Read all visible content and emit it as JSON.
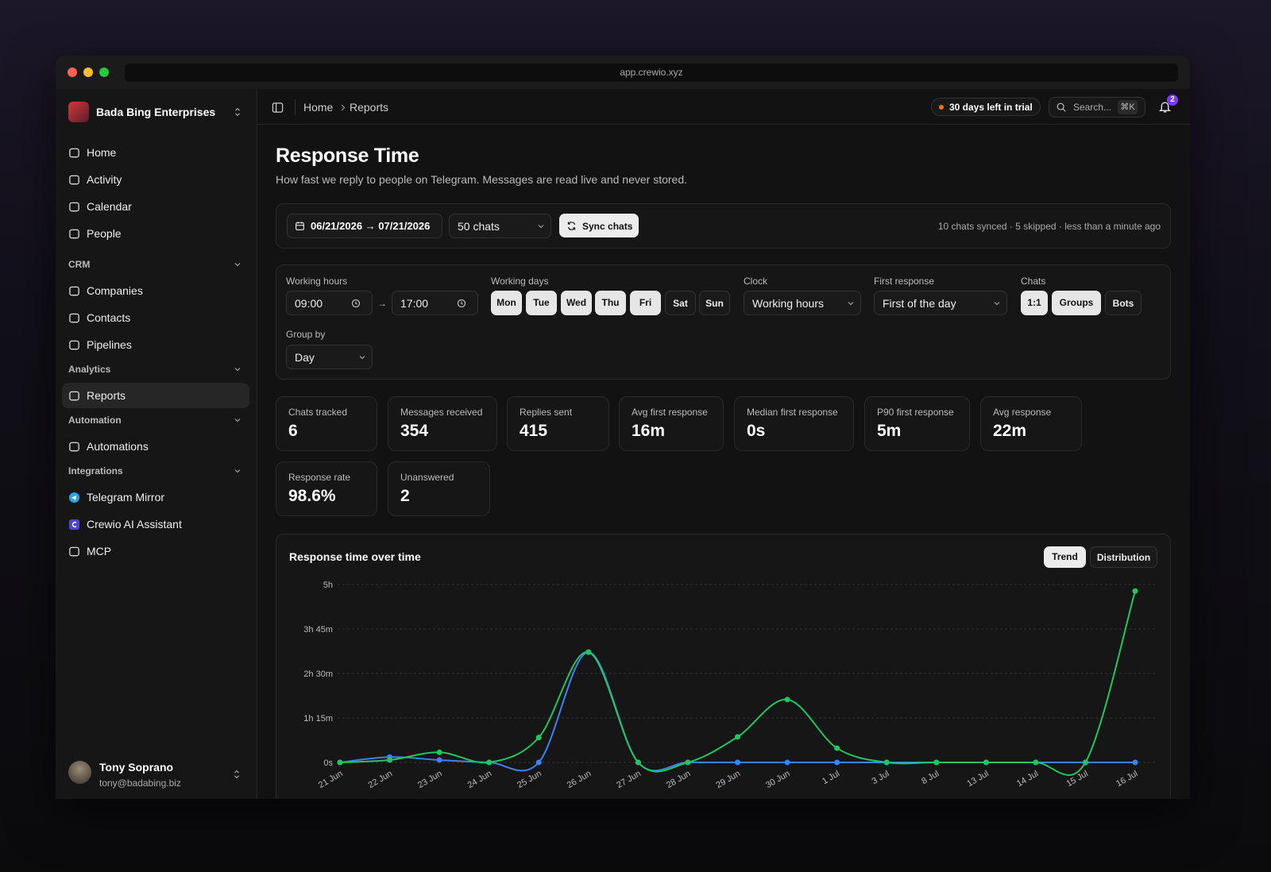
{
  "browser": {
    "url": "app.crewio.xyz"
  },
  "sidebar": {
    "workspace": "Bada Bing Enterprises",
    "groups": [
      {
        "items": [
          "Home",
          "Activity",
          "Calendar",
          "People"
        ]
      },
      {
        "title": "CRM",
        "items": [
          "Companies",
          "Contacts",
          "Pipelines"
        ]
      },
      {
        "title": "Analytics",
        "items": [
          "Reports"
        ]
      },
      {
        "title": "Automation",
        "items": [
          "Automations"
        ]
      },
      {
        "title": "Integrations",
        "items": [
          "Telegram Mirror",
          "Crewio AI Assistant",
          "MCP"
        ]
      }
    ],
    "active": "Reports",
    "user": {
      "name": "Tony Soprano",
      "email": "tony@badabing.biz"
    }
  },
  "topbar": {
    "breadcrumb": [
      "Home",
      "Reports"
    ],
    "trial": "30 days left in trial",
    "search_placeholder": "Search...",
    "search_shortcut": "⌘K",
    "notifications": 2
  },
  "header": {
    "title": "Response Time",
    "subtitle": "How fast we reply to people on Telegram. Messages are read live and never stored."
  },
  "toolbar": {
    "date_range": "06/21/2026 → 07/21/2026",
    "chats": "50 chats",
    "sync": "Sync chats",
    "status": "10 chats synced · 5 skipped · less than a minute ago"
  },
  "filters": {
    "working_hours": {
      "label": "Working hours",
      "start": "09:00",
      "separator": "→",
      "end": "17:00"
    },
    "working_days": {
      "label": "Working days",
      "days": [
        {
          "label": "Mon",
          "on": true
        },
        {
          "label": "Tue",
          "on": true
        },
        {
          "label": "Wed",
          "on": true
        },
        {
          "label": "Thu",
          "on": true
        },
        {
          "label": "Fri",
          "on": true
        },
        {
          "label": "Sat",
          "on": false
        },
        {
          "label": "Sun",
          "on": false
        }
      ]
    },
    "clock": {
      "label": "Clock",
      "value": "Working hours"
    },
    "first_response": {
      "label": "First response",
      "value": "First of the day"
    },
    "chats": {
      "label": "Chats",
      "options": [
        {
          "label": "1:1",
          "on": true
        },
        {
          "label": "Groups",
          "on": true
        },
        {
          "label": "Bots",
          "on": false
        }
      ]
    },
    "group_by": {
      "label": "Group by",
      "value": "Day"
    }
  },
  "stats": [
    {
      "label": "Chats tracked",
      "value": "6"
    },
    {
      "label": "Messages received",
      "value": "354"
    },
    {
      "label": "Replies sent",
      "value": "415"
    },
    {
      "label": "Avg first response",
      "value": "16m"
    },
    {
      "label": "Median first response",
      "value": "0s"
    },
    {
      "label": "P90 first response",
      "value": "5m"
    },
    {
      "label": "Avg response",
      "value": "22m"
    },
    {
      "label": "Response rate",
      "value": "98.6%"
    },
    {
      "label": "Unanswered",
      "value": "2"
    }
  ],
  "chart_controls": {
    "options": [
      "Trend",
      "Distribution"
    ],
    "active": "Trend"
  },
  "chart_data": {
    "type": "line",
    "title": "Response time over time",
    "categories": [
      "21 Jun",
      "22 Jun",
      "23 Jun",
      "24 Jun",
      "25 Jun",
      "26 Jun",
      "27 Jun",
      "28 Jun",
      "29 Jun",
      "30 Jun",
      "1 Jul",
      "3 Jul",
      "8 Jul",
      "13 Jul",
      "14 Jul",
      "15 Jul",
      "16 Jul"
    ],
    "series": [
      {
        "color": "#3b82f6",
        "values": [
          0,
          9,
          4,
          0,
          0,
          186,
          0,
          0,
          0,
          0,
          0,
          0,
          0,
          0,
          0,
          0,
          0
        ]
      },
      {
        "color": "#22c55e",
        "values": [
          0,
          4,
          17,
          0,
          42,
          186,
          0,
          0,
          43,
          106,
          24,
          0,
          0,
          0,
          0,
          0,
          289
        ]
      }
    ],
    "ylim": [
      0,
      300
    ],
    "yticks": [
      {
        "value": 0,
        "label": "0s"
      },
      {
        "value": 75,
        "label": "1h 15m"
      },
      {
        "value": 150,
        "label": "2h 30m"
      },
      {
        "value": 225,
        "label": "3h 45m"
      },
      {
        "value": 300,
        "label": "5h"
      }
    ],
    "grid": true
  }
}
